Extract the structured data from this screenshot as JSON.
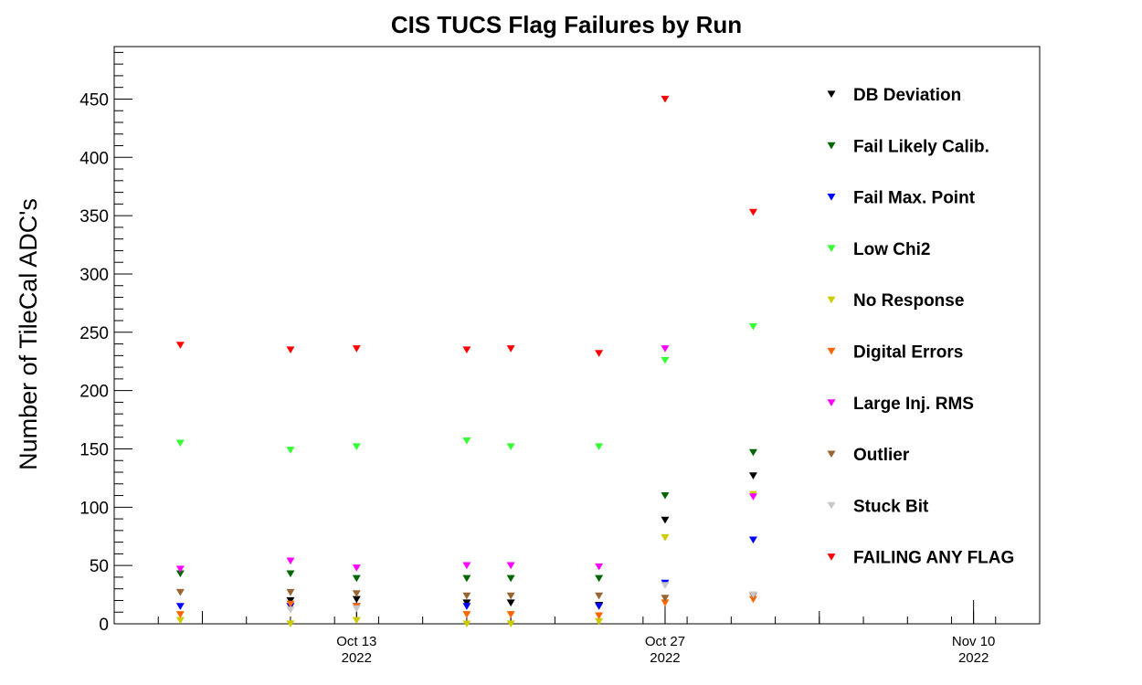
{
  "chart_data": {
    "type": "scatter",
    "title": "CIS TUCS Flag Failures by Run",
    "xlabel": "",
    "ylabel": "Number of TileCal ADC's",
    "x_axis": "date",
    "xlim": [
      "2022-10-02",
      "2022-11-13"
    ],
    "ylim": [
      0,
      495
    ],
    "y_ticks": [
      0,
      50,
      100,
      150,
      200,
      250,
      300,
      350,
      400,
      450
    ],
    "x_ticks": [
      {
        "date": "2022-10-13",
        "line1": "Oct 13",
        "line2": "2022"
      },
      {
        "date": "2022-10-27",
        "line1": "Oct 27",
        "line2": "2022"
      },
      {
        "date": "2022-11-10",
        "line1": "Nov 10",
        "line2": "2022"
      }
    ],
    "marker": "triangle-down",
    "legend_position": "right",
    "x": [
      "2022-10-05",
      "2022-10-10",
      "2022-10-13",
      "2022-10-18",
      "2022-10-20",
      "2022-10-24",
      "2022-10-27",
      "2022-10-31"
    ],
    "series": [
      {
        "name": "DB Deviation",
        "color": "#000000",
        "values": [
          null,
          20,
          21,
          18,
          18,
          16,
          89,
          127
        ]
      },
      {
        "name": "Fail Likely Calib.",
        "color": "#006600",
        "values": [
          43,
          43,
          39,
          39,
          39,
          39,
          110,
          147
        ]
      },
      {
        "name": "Fail Max. Point",
        "color": "#0000ff",
        "values": [
          15,
          15,
          15,
          15,
          null,
          15,
          35,
          72
        ]
      },
      {
        "name": "Low Chi2",
        "color": "#33ff33",
        "values": [
          155,
          149,
          152,
          157,
          152,
          152,
          226,
          255
        ]
      },
      {
        "name": "No Response",
        "color": "#cccc00",
        "values": [
          3,
          0,
          3,
          0,
          0,
          2,
          74,
          111
        ]
      },
      {
        "name": "Digital Errors",
        "color": "#ff6600",
        "values": [
          8,
          17,
          15,
          8,
          8,
          7,
          18,
          21
        ]
      },
      {
        "name": "Large Inj. RMS",
        "color": "#ff00ff",
        "values": [
          47,
          54,
          48,
          50,
          50,
          49,
          236,
          109
        ]
      },
      {
        "name": "Outlier",
        "color": "#996633",
        "values": [
          27,
          27,
          26,
          24,
          24,
          24,
          22,
          24
        ]
      },
      {
        "name": "Stuck Bit",
        "color": "#c8c8c8",
        "values": [
          null,
          12,
          13,
          null,
          null,
          null,
          33,
          25
        ]
      },
      {
        "name": "FAILING ANY FLAG",
        "color": "#ff0000",
        "values": [
          239,
          235,
          236,
          235,
          236,
          232,
          450,
          353
        ]
      }
    ]
  }
}
